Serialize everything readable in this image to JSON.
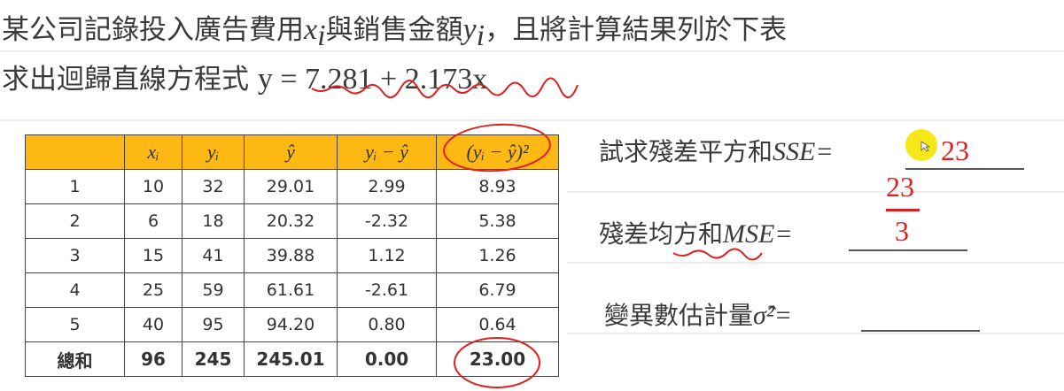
{
  "header": {
    "line1_a": "某公司記錄投入廣告費用",
    "line1_x": "x",
    "line1_xi": "i",
    "line1_b": "與銷售金額",
    "line1_y": "y",
    "line1_yi": "i",
    "line1_c": "，且將計算結果列於下表",
    "line2_a": "求出迴歸直線方程式 ",
    "line2_eq": "y = 7.281 + 2.173x"
  },
  "table": {
    "headers": [
      "",
      "xᵢ",
      "yᵢ",
      "ŷ",
      "yᵢ − ŷ",
      "(yᵢ − ŷ)²"
    ],
    "rows": [
      [
        "1",
        "10",
        "32",
        "29.01",
        "2.99",
        "8.93"
      ],
      [
        "2",
        "6",
        "18",
        "20.32",
        "-2.32",
        "5.38"
      ],
      [
        "3",
        "15",
        "41",
        "39.88",
        "1.12",
        "1.26"
      ],
      [
        "4",
        "25",
        "59",
        "61.61",
        "-2.61",
        "6.79"
      ],
      [
        "5",
        "40",
        "95",
        "94.20",
        "0.80",
        "0.64"
      ]
    ],
    "total": [
      "總和",
      "96",
      "245",
      "245.01",
      "0.00",
      "23.00"
    ],
    "header_color": "#fdb813"
  },
  "questions": {
    "sse_label": "試求殘差平方和",
    "sse_sym": "SSE=",
    "sse_answer": "23",
    "mse_label": "殘差均方和",
    "mse_sym": "MSE=",
    "mse_num": "23",
    "mse_den": "3",
    "var_label": "變異數估計量",
    "var_sym": "σ̂²="
  },
  "annotation_color": "#e02020"
}
